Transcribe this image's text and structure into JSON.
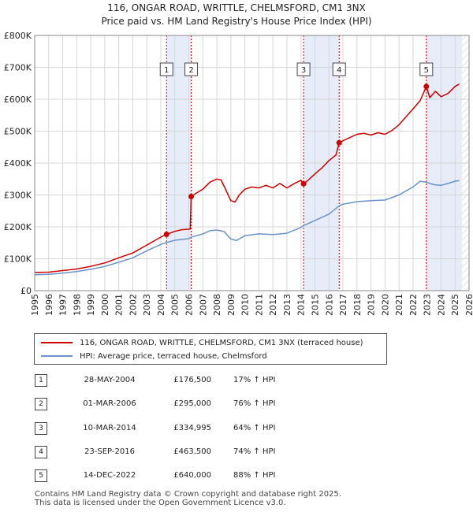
{
  "header": {
    "title": "116, ONGAR ROAD, WRITTLE, CHELMSFORD, CM1 3NX",
    "subtitle": "Price paid vs. HM Land Registry's House Price Index (HPI)"
  },
  "legend": {
    "property": "116, ONGAR ROAD, WRITTLE, CHELMSFORD, CM1 3NX (terraced house)",
    "hpi": "HPI: Average price, terraced house, Chelmsford"
  },
  "colors": {
    "property": "#cc0000",
    "hpi": "#6a93c8",
    "band": "#e6ecf8",
    "grid": "#d7d7d7"
  },
  "transactions": [
    {
      "num": "1",
      "date": "28-MAY-2004",
      "price": "£176,500",
      "hpi": "17% ↑ HPI"
    },
    {
      "num": "2",
      "date": "01-MAR-2006",
      "price": "£295,000",
      "hpi": "76% ↑ HPI"
    },
    {
      "num": "3",
      "date": "10-MAR-2014",
      "price": "£334,995",
      "hpi": "64% ↑ HPI"
    },
    {
      "num": "4",
      "date": "23-SEP-2016",
      "price": "£463,500",
      "hpi": "74% ↑ HPI"
    },
    {
      "num": "5",
      "date": "14-DEC-2022",
      "price": "£640,000",
      "hpi": "88% ↑ HPI"
    }
  ],
  "footer": {
    "line1": "Contains HM Land Registry data © Crown copyright and database right 2025.",
    "line2": "This data is licensed under the Open Government Licence v3.0."
  },
  "chart_data": {
    "type": "line",
    "title": "116, ONGAR ROAD, WRITTLE, CHELMSFORD, CM1 3NX",
    "subtitle": "Price paid vs. HM Land Registry's House Price Index (HPI)",
    "xlim": [
      1995,
      2026
    ],
    "ylim": [
      0,
      800000
    ],
    "x_ticks": [
      1995,
      1996,
      1997,
      1998,
      1999,
      2000,
      2001,
      2002,
      2003,
      2004,
      2005,
      2006,
      2007,
      2008,
      2009,
      2010,
      2011,
      2012,
      2013,
      2014,
      2015,
      2016,
      2017,
      2018,
      2019,
      2020,
      2021,
      2022,
      2023,
      2024,
      2025,
      2026
    ],
    "y_ticks": [
      {
        "value": 0,
        "label": "£0"
      },
      {
        "value": 100000,
        "label": "£100K"
      },
      {
        "value": 200000,
        "label": "£200K"
      },
      {
        "value": 300000,
        "label": "£300K"
      },
      {
        "value": 400000,
        "label": "£400K"
      },
      {
        "value": 500000,
        "label": "£500K"
      },
      {
        "value": 600000,
        "label": "£600K"
      },
      {
        "value": 700000,
        "label": "£700K"
      },
      {
        "value": 800000,
        "label": "£800K"
      }
    ],
    "grid": true,
    "shaded_ranges": [
      [
        2004.41,
        2006.17
      ],
      [
        2014.19,
        2016.73
      ],
      [
        2022.95,
        2025.5
      ]
    ],
    "sales": [
      {
        "label": "1",
        "x": 2004.41,
        "y": 176500
      },
      {
        "label": "2",
        "x": 2006.17,
        "y": 295000
      },
      {
        "label": "3",
        "x": 2014.19,
        "y": 334995
      },
      {
        "label": "4",
        "x": 2016.73,
        "y": 463500
      },
      {
        "label": "5",
        "x": 2022.95,
        "y": 640000
      }
    ],
    "series": [
      {
        "name": "116, ONGAR ROAD, WRITTLE, CHELMSFORD, CM1 3NX (terraced house)",
        "color": "#cc0000",
        "x": [
          1995,
          1996,
          1997,
          1998,
          1999,
          2000,
          2001,
          2002,
          2003,
          2004,
          2004.41,
          2005,
          2005.5,
          2006.1,
          2006.17,
          2006.5,
          2007,
          2007.5,
          2008,
          2008.3,
          2008.6,
          2009,
          2009.3,
          2009.6,
          2010,
          2010.5,
          2011,
          2011.5,
          2012,
          2012.5,
          2013,
          2013.5,
          2014,
          2014.19,
          2014.5,
          2015,
          2015.5,
          2016,
          2016.5,
          2016.73,
          2017,
          2017.5,
          2018,
          2018.5,
          2019,
          2019.5,
          2020,
          2020.5,
          2021,
          2021.5,
          2022,
          2022.5,
          2022.95,
          2023.2,
          2023.6,
          2024,
          2024.5,
          2025,
          2025.3
        ],
        "y": [
          57000,
          58000,
          63000,
          68000,
          76000,
          87000,
          103000,
          118000,
          143000,
          168000,
          176500,
          186000,
          191000,
          193000,
          295000,
          305000,
          318000,
          340000,
          350000,
          347000,
          320000,
          282000,
          278000,
          300000,
          318000,
          325000,
          322000,
          330000,
          322000,
          336000,
          322000,
          335000,
          346000,
          334995,
          346000,
          366000,
          385000,
          408000,
          425000,
          463500,
          470000,
          480000,
          490000,
          493000,
          488000,
          495000,
          490000,
          502000,
          520000,
          545000,
          570000,
          595000,
          640000,
          605000,
          625000,
          608000,
          618000,
          640000,
          648000
        ]
      },
      {
        "name": "HPI: Average price, terraced house, Chelmsford",
        "color": "#6a93c8",
        "x": [
          1995,
          1996,
          1997,
          1998,
          1999,
          2000,
          2001,
          2002,
          2003,
          2004,
          2004.41,
          2005,
          2006,
          2006.17,
          2007,
          2007.5,
          2008,
          2008.5,
          2009,
          2009.4,
          2010,
          2011,
          2012,
          2013,
          2014,
          2014.19,
          2015,
          2016,
          2016.73,
          2017,
          2018,
          2019,
          2020,
          2021,
          2022,
          2022.5,
          2022.95,
          2023.5,
          2024,
          2024.5,
          2025,
          2025.3
        ],
        "y": [
          50000,
          51000,
          55000,
          60000,
          67000,
          76000,
          89000,
          103000,
          125000,
          145000,
          151000,
          158000,
          163000,
          167500,
          178000,
          188000,
          190000,
          186000,
          162000,
          157000,
          172000,
          178000,
          176000,
          180000,
          198000,
          204000,
          220000,
          240000,
          266000,
          271000,
          279000,
          282000,
          284000,
          300000,
          325000,
          343000,
          340000,
          332000,
          330000,
          336000,
          343000,
          345000
        ]
      }
    ]
  }
}
